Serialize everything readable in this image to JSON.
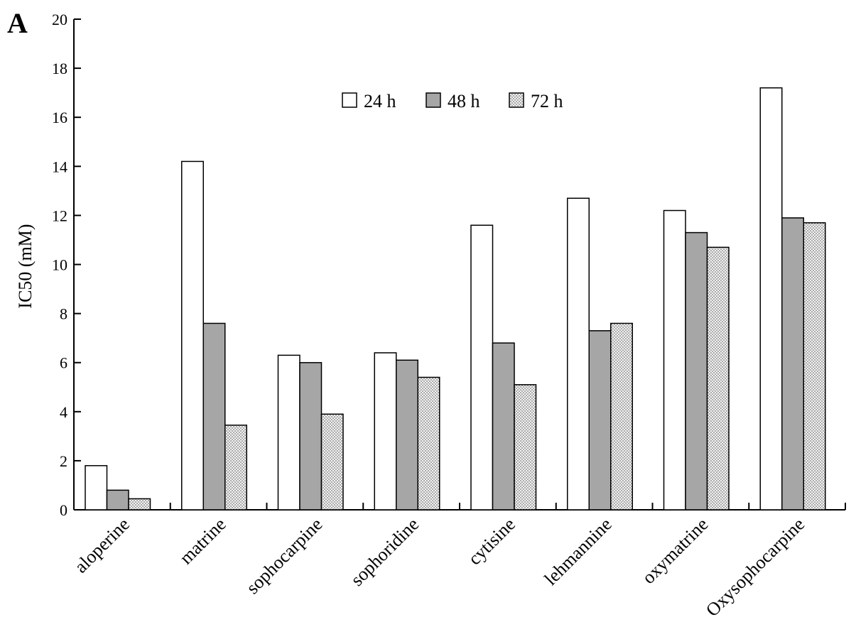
{
  "panel_label": "A",
  "chart_data": {
    "type": "bar",
    "title": "",
    "xlabel": "",
    "ylabel": "IC50 (mM)",
    "ylim": [
      0,
      20
    ],
    "yticks": [
      0,
      2,
      4,
      6,
      8,
      10,
      12,
      14,
      16,
      18,
      20
    ],
    "grid": false,
    "legend_placement": "top-center",
    "categories": [
      "aloperine",
      "matrine",
      "sophocarpine",
      "sophoridine",
      "cytisine",
      "lehmannine",
      "oxymatrine",
      "Oxysophocarpine"
    ],
    "series": [
      {
        "name": "24 h",
        "fill": "white",
        "values": [
          1.8,
          14.2,
          6.3,
          6.4,
          11.6,
          12.7,
          12.2,
          17.2
        ]
      },
      {
        "name": "48 h",
        "fill": "gray",
        "values": [
          0.8,
          7.6,
          6.0,
          6.1,
          6.8,
          7.3,
          11.3,
          11.9
        ]
      },
      {
        "name": "72 h",
        "fill": "dotted",
        "values": [
          0.45,
          3.45,
          3.9,
          5.4,
          5.1,
          7.6,
          10.7,
          11.7
        ]
      }
    ],
    "colors": {
      "white": "#ffffff",
      "gray": "#a6a6a6",
      "dotted_bg": "#f2f2f2",
      "dotted_dot": "#7a7a7a",
      "stroke": "#000000"
    }
  }
}
